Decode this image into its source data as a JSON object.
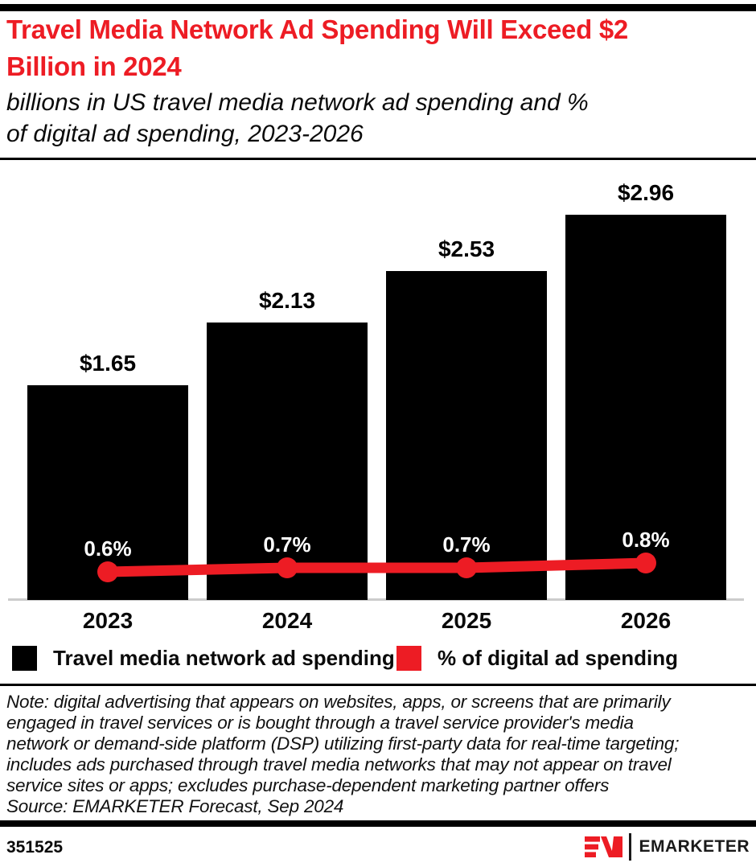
{
  "header": {
    "title_lines": [
      "Travel Media Network Ad Spending Will Exceed $2",
      "Billion in 2024"
    ],
    "subtitle_lines": [
      "billions in US travel media network ad spending and %",
      "of digital ad spending, 2023-2026"
    ],
    "title_color": "#ed1c24"
  },
  "chart_data": {
    "type": "bar",
    "categories": [
      "2023",
      "2024",
      "2025",
      "2026"
    ],
    "series": [
      {
        "name": "Travel media network ad spending",
        "type": "bar",
        "unit": "$ billions",
        "values": [
          1.65,
          2.13,
          2.53,
          2.96
        ],
        "labels": [
          "$1.65",
          "$2.13",
          "$2.53",
          "$2.96"
        ],
        "color": "#000000"
      },
      {
        "name": "% of digital ad spending",
        "type": "line",
        "unit": "%",
        "values": [
          0.6,
          0.7,
          0.7,
          0.8
        ],
        "labels": [
          "0.6%",
          "0.7%",
          "0.7%",
          "0.8%"
        ],
        "color": "#ed1c24"
      }
    ],
    "xlabel": "",
    "ylabel": "",
    "bar_axis_min": 0,
    "grid": false,
    "legend_position": "bottom"
  },
  "legend": {
    "items": [
      {
        "label": "Travel media network ad spending",
        "color": "#000000"
      },
      {
        "label": "% of digital ad spending",
        "color": "#ed1c24"
      }
    ]
  },
  "footer": {
    "note_lines": [
      "Note: digital advertising that appears on websites, apps, or screens that are primarily",
      "engaged in travel services or is bought through a travel service provider's media",
      "network or demand-side platform (DSP) utilizing first-party data for real-time targeting;",
      "includes ads purchased through travel media networks that may not appear on travel",
      "service sites or apps; excludes purchase-dependent marketing partner offers",
      "Source: EMARKETER Forecast, Sep 2024"
    ],
    "chart_id": "351525",
    "logo_text": "EMARKETER",
    "logo_monogram": "EM"
  }
}
